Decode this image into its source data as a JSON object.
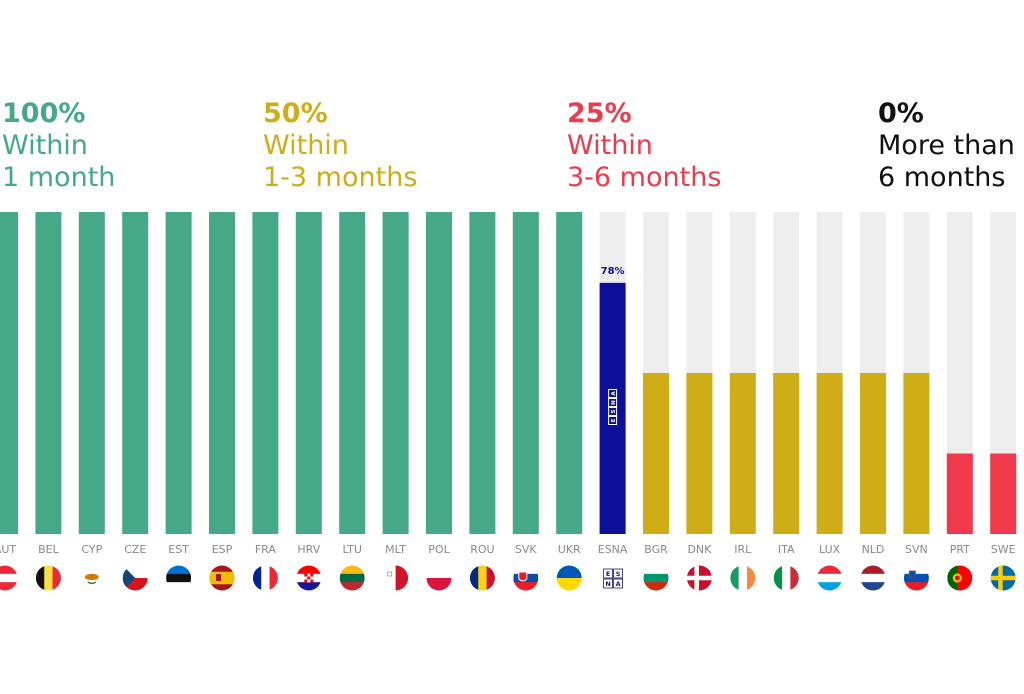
{
  "legend": [
    {
      "pct": "100%",
      "line1": "Within",
      "line2": "1 month",
      "color": "#45A988"
    },
    {
      "pct": "50%",
      "line1": "Within",
      "line2": "1-3 months",
      "color": "#CFAD17"
    },
    {
      "pct": "25%",
      "line1": "Within",
      "line2": "3-6 months",
      "color": "#F03A4B"
    },
    {
      "pct": "0%",
      "line1": "More than",
      "line2": "6 months",
      "color": "#111111"
    }
  ],
  "colors": {
    "full": "#45A988",
    "half": "#CFAD17",
    "quarter": "#F03A4B",
    "esna": "#0D0F9B",
    "track": "#EEEEEE",
    "tick": "#8A8A8A"
  },
  "chart_data": {
    "type": "bar",
    "categories": [
      "AUT",
      "BEL",
      "CYP",
      "CZE",
      "EST",
      "ESP",
      "FRA",
      "HRV",
      "LTU",
      "MLT",
      "POL",
      "ROU",
      "SVK",
      "UKR",
      "ESNA",
      "BGR",
      "DNK",
      "IRL",
      "ITA",
      "LUX",
      "NLD",
      "SVN",
      "PRT",
      "SWE"
    ],
    "values": [
      100,
      100,
      100,
      100,
      100,
      100,
      100,
      100,
      100,
      100,
      100,
      100,
      100,
      100,
      78,
      50,
      50,
      50,
      50,
      50,
      50,
      50,
      25,
      25
    ],
    "data_labels": {
      "ESNA": "78%"
    },
    "ylim": [
      0,
      100
    ],
    "grid": false,
    "title": "",
    "xlabel": "",
    "ylabel": ""
  },
  "flags": [
    {
      "code": "AUT",
      "icon": "austria-flag-icon"
    },
    {
      "code": "BEL",
      "icon": "belgium-flag-icon"
    },
    {
      "code": "CYP",
      "icon": "cyprus-flag-icon"
    },
    {
      "code": "CZE",
      "icon": "czechia-flag-icon"
    },
    {
      "code": "EST",
      "icon": "estonia-flag-icon"
    },
    {
      "code": "ESP",
      "icon": "spain-flag-icon"
    },
    {
      "code": "FRA",
      "icon": "france-flag-icon"
    },
    {
      "code": "HRV",
      "icon": "croatia-flag-icon"
    },
    {
      "code": "LTU",
      "icon": "lithuania-flag-icon"
    },
    {
      "code": "MLT",
      "icon": "malta-flag-icon"
    },
    {
      "code": "POL",
      "icon": "poland-flag-icon"
    },
    {
      "code": "ROU",
      "icon": "romania-flag-icon"
    },
    {
      "code": "SVK",
      "icon": "slovakia-flag-icon"
    },
    {
      "code": "UKR",
      "icon": "ukraine-flag-icon"
    },
    {
      "code": "ESNA",
      "icon": "esna-logo-icon"
    },
    {
      "code": "BGR",
      "icon": "bulgaria-flag-icon"
    },
    {
      "code": "DNK",
      "icon": "denmark-flag-icon"
    },
    {
      "code": "IRL",
      "icon": "ireland-flag-icon"
    },
    {
      "code": "ITA",
      "icon": "italy-flag-icon"
    },
    {
      "code": "LUX",
      "icon": "luxembourg-flag-icon"
    },
    {
      "code": "NLD",
      "icon": "netherlands-flag-icon"
    },
    {
      "code": "SVN",
      "icon": "slovenia-flag-icon"
    },
    {
      "code": "PRT",
      "icon": "portugal-flag-icon"
    },
    {
      "code": "SWE",
      "icon": "sweden-flag-icon"
    }
  ],
  "esna_logo_letters": [
    "E",
    "S",
    "N",
    "A"
  ]
}
